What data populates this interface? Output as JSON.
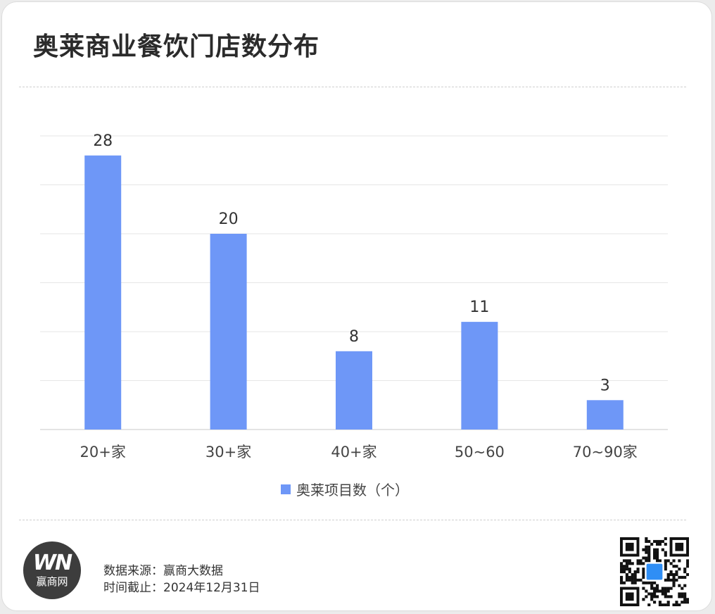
{
  "title": "奥莱商业餐饮门店数分布",
  "chart_data": {
    "type": "bar",
    "categories": [
      "20+家",
      "30+家",
      "40+家",
      "50~60",
      "70~90家"
    ],
    "series": [
      {
        "name": "奥莱项目数（个）",
        "values": [
          28,
          20,
          8,
          11,
          3
        ]
      }
    ],
    "ylim": [
      0,
      30
    ],
    "grid": true,
    "legend_position": "bottom-center",
    "bar_color": "#6e97f7",
    "data_labels": true
  },
  "footer": {
    "logo_mark": "WN",
    "logo_name": "赢商网",
    "source_line": "数据来源：赢商大数据",
    "date_line": "时间截止：2024年12月31日",
    "qr_icon": "qr-code-icon"
  }
}
